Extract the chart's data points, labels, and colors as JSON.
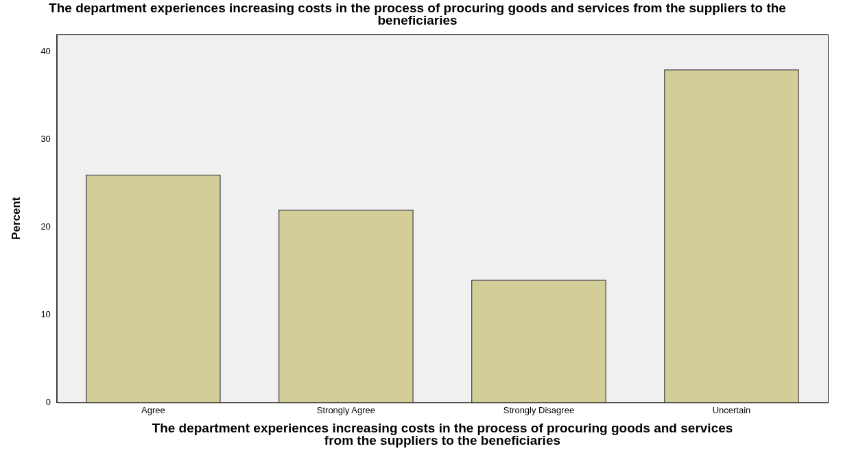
{
  "chart_data": {
    "type": "bar",
    "title": "The department experiences increasing costs in the process of procuring goods and services from the suppliers to the beneficiaries",
    "xlabel": "The department experiences increasing costs in the process of procuring goods and services from the suppliers to the beneficiaries",
    "ylabel": "Percent",
    "categories": [
      "Agree",
      "Strongly Agree",
      "Strongly Disagree",
      "Uncertain"
    ],
    "values": [
      26,
      22,
      14,
      38
    ],
    "color": "#d3ce97",
    "ylim": [
      0,
      42
    ],
    "yticks": [
      0,
      10,
      20,
      30,
      40
    ],
    "grid": false,
    "legend": false
  }
}
